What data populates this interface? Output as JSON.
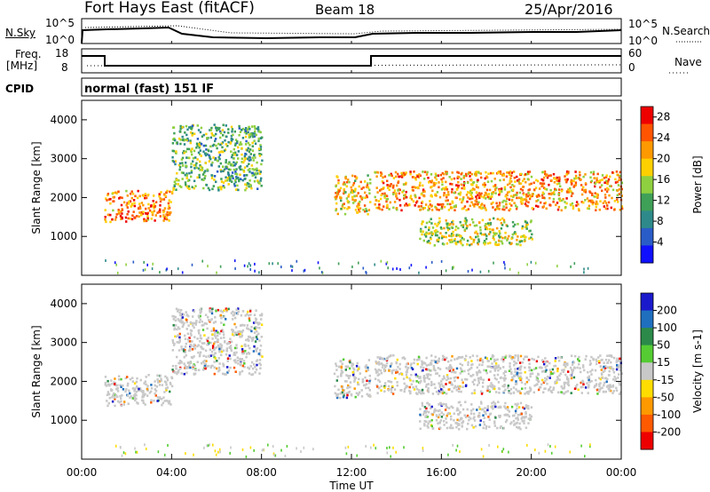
{
  "header": {
    "title": "Fort Hays East (fitACF)",
    "beam": "Beam 18",
    "date": "25/Apr/2016"
  },
  "noise_panel": {
    "left_label": "N.Sky",
    "left_ticks": [
      "10^5",
      "10^0"
    ],
    "right_ticks": [
      "10^5",
      "10^0"
    ],
    "right_label": "N.Search"
  },
  "freq_panel": {
    "left_label_line1": "Freq.",
    "left_label_line2": "[MHz]",
    "left_ticks": [
      "18",
      "8"
    ],
    "right_ticks": [
      "60",
      "0"
    ],
    "right_label": "Nave"
  },
  "cpid": {
    "label": "CPID",
    "value": "normal (fast) 151 IF"
  },
  "colors": {
    "power_scale": [
      "#1010ff",
      "#2a5cc8",
      "#2e8a8a",
      "#3fa058",
      "#8fd040",
      "#ffd000",
      "#ff9900",
      "#ff5500",
      "#ee0000"
    ],
    "velocity_scale": [
      "#1a1acc",
      "#1f6fbf",
      "#2b8a4a",
      "#55cc33",
      "#c8c8c8",
      "#ffdd00",
      "#ff9900",
      "#ff5a00",
      "#ee0000"
    ]
  },
  "chart_data": [
    {
      "type": "heatmap",
      "title": "",
      "xlabel": "",
      "ylabel": "Slant Range [km]",
      "xlim": [
        "00:00",
        "00:00"
      ],
      "ylim": [
        0,
        4500
      ],
      "y_ticks": [
        "1000",
        "2000",
        "3000",
        "4000"
      ],
      "colorbar": {
        "label": "Power [dB]",
        "ticks": [
          "4",
          "8",
          "12",
          "16",
          "20",
          "24",
          "28"
        ],
        "range": [
          0,
          30
        ]
      },
      "scatter_bands": [
        {
          "t_start": 1.0,
          "t_end": 4.0,
          "range_low": 1400,
          "range_high": 2200,
          "power": 24
        },
        {
          "t_start": 4.0,
          "t_end": 8.0,
          "range_low": 2200,
          "range_high": 3900,
          "power": 12
        },
        {
          "t_start": 11.2,
          "t_end": 12.8,
          "range_low": 1600,
          "range_high": 2600,
          "power": 20
        },
        {
          "t_start": 13.0,
          "t_end": 24.0,
          "range_low": 1700,
          "range_high": 2700,
          "power": 22
        },
        {
          "t_start": 15.0,
          "t_end": 20.0,
          "range_low": 800,
          "range_high": 1500,
          "power": 16
        }
      ]
    },
    {
      "type": "heatmap",
      "title": "",
      "xlabel": "Time UT",
      "ylabel": "Slant Range [km]",
      "xlim": [
        "00:00",
        "00:00"
      ],
      "ylim": [
        0,
        4500
      ],
      "x_ticks": [
        "00:00",
        "04:00",
        "08:00",
        "12:00",
        "16:00",
        "20:00",
        "00:00"
      ],
      "y_ticks": [
        "1000",
        "2000",
        "3000",
        "4000"
      ],
      "colorbar": {
        "label": "Velocity [m s-1]",
        "ticks": [
          "200",
          "100",
          "50",
          "15",
          "-15",
          "-50",
          "-100",
          "-200"
        ],
        "range": [
          -250,
          250
        ]
      }
    }
  ]
}
